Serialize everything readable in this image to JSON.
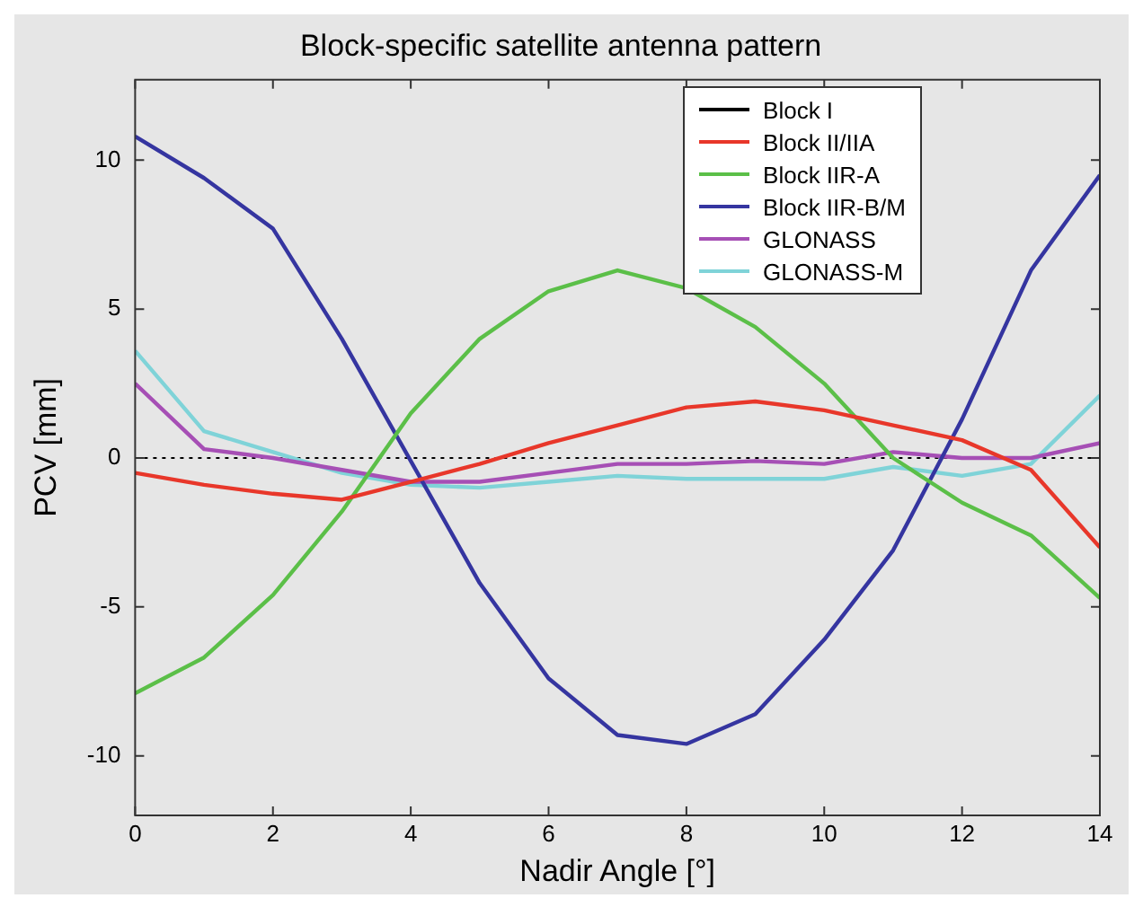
{
  "chart_data": {
    "type": "line",
    "title": "Block-specific satellite antenna pattern",
    "xlabel": "Nadir Angle [°]",
    "ylabel": "PCV [mm]",
    "x": [
      0,
      1,
      2,
      3,
      4,
      5,
      6,
      7,
      8,
      9,
      10,
      11,
      12,
      13,
      14
    ],
    "series": [
      {
        "name": "Block I",
        "color": "#000000",
        "values": [
          null,
          null,
          null,
          null,
          null,
          null,
          null,
          null,
          null,
          null,
          null,
          null,
          null,
          null,
          null
        ]
      },
      {
        "name": "Block II/IIA",
        "color": "#e8372a",
        "values": [
          -0.5,
          -0.9,
          -1.2,
          -1.4,
          -0.8,
          -0.2,
          0.5,
          1.1,
          1.7,
          1.9,
          1.6,
          1.1,
          0.6,
          -0.4,
          -3.0
        ]
      },
      {
        "name": "Block IIR-A",
        "color": "#5bbf48",
        "values": [
          -7.9,
          -6.7,
          -4.6,
          -1.8,
          1.5,
          4.0,
          5.6,
          6.3,
          5.7,
          4.4,
          2.5,
          0.0,
          -1.5,
          -2.6,
          -4.7
        ]
      },
      {
        "name": "Block IIR-B/M",
        "color": "#3535a0",
        "values": [
          10.8,
          9.4,
          7.7,
          4.0,
          -0.1,
          -4.2,
          -7.4,
          -9.3,
          -9.6,
          -8.6,
          -6.1,
          -3.1,
          1.3,
          6.3,
          9.5
        ]
      },
      {
        "name": "GLONASS",
        "color": "#a64fb5",
        "values": [
          2.5,
          0.3,
          0.0,
          -0.4,
          -0.8,
          -0.8,
          -0.5,
          -0.2,
          -0.2,
          -0.1,
          -0.2,
          0.2,
          0.0,
          0.0,
          0.5
        ]
      },
      {
        "name": "GLONASS-M",
        "color": "#7fd3d8",
        "values": [
          3.6,
          0.9,
          0.2,
          -0.5,
          -0.9,
          -1.0,
          -0.8,
          -0.6,
          -0.7,
          -0.7,
          -0.7,
          -0.3,
          -0.6,
          -0.2,
          2.1
        ]
      }
    ],
    "xlim": [
      0,
      14
    ],
    "xticks": [
      0,
      2,
      4,
      6,
      8,
      10,
      12,
      14
    ],
    "ylim": [
      -12,
      12.7
    ],
    "yticks": [
      -10,
      -5,
      0,
      5,
      10
    ],
    "ref_lines": [
      {
        "axis": "y",
        "value": 0,
        "color": "#000000",
        "line_style": "dotted"
      }
    ],
    "grid": false,
    "legend": "top right",
    "marker": "none",
    "line_style": "solid"
  }
}
